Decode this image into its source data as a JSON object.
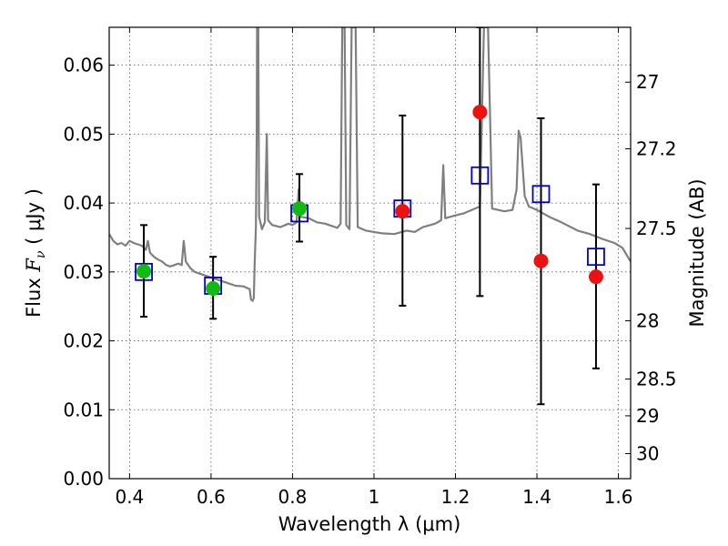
{
  "chart_data": {
    "type": "scatter",
    "title": "",
    "xlabel": "Wavelength  λ (μm)",
    "ylabel": {
      "prefix": "Flux  ",
      "symbol": "F",
      "sub": "ν",
      "suffix": "  ( μJy )"
    },
    "y2label": "Magnitude (AB)",
    "xlim": [
      0.35,
      1.63
    ],
    "ylim": [
      0.0,
      0.0655
    ],
    "grid": true,
    "x_ticks": [
      {
        "value": 0.4,
        "label": "0.4"
      },
      {
        "value": 0.6,
        "label": "0.6"
      },
      {
        "value": 0.8,
        "label": "0.8"
      },
      {
        "value": 1.0,
        "label": "1"
      },
      {
        "value": 1.2,
        "label": "1.2"
      },
      {
        "value": 1.4,
        "label": "1.4"
      },
      {
        "value": 1.6,
        "label": "1.6"
      }
    ],
    "y_ticks": [
      {
        "value": 0.0,
        "label": "0.00"
      },
      {
        "value": 0.01,
        "label": "0.01"
      },
      {
        "value": 0.02,
        "label": "0.02"
      },
      {
        "value": 0.03,
        "label": "0.03"
      },
      {
        "value": 0.04,
        "label": "0.04"
      },
      {
        "value": 0.05,
        "label": "0.05"
      },
      {
        "value": 0.06,
        "label": "0.06"
      }
    ],
    "y2_ticks": [
      {
        "value": 27,
        "label": "27"
      },
      {
        "value": 27.2,
        "label": "27.2"
      },
      {
        "value": 27.5,
        "label": "27.5"
      },
      {
        "value": 28,
        "label": "28"
      },
      {
        "value": 28.5,
        "label": "28.5"
      },
      {
        "value": 29,
        "label": "29"
      },
      {
        "value": 30,
        "label": "30"
      }
    ],
    "colors": {
      "spectrum": "#7f7f7f",
      "model": "#0000cc",
      "green": "#11bb11",
      "red": "#ee1111",
      "errorbar": "#000000",
      "grid": "#555555"
    },
    "series": [
      {
        "kind": "spectrum",
        "points": [
          [
            0.35,
            0.0355
          ],
          [
            0.36,
            0.0345
          ],
          [
            0.37,
            0.034
          ],
          [
            0.38,
            0.0342
          ],
          [
            0.39,
            0.0338
          ],
          [
            0.4,
            0.0345
          ],
          [
            0.41,
            0.0342
          ],
          [
            0.42,
            0.034
          ],
          [
            0.43,
            0.0338
          ],
          [
            0.44,
            0.0332
          ],
          [
            0.445,
            0.0345
          ],
          [
            0.45,
            0.0328
          ],
          [
            0.46,
            0.0322
          ],
          [
            0.47,
            0.0318
          ],
          [
            0.48,
            0.0315
          ],
          [
            0.49,
            0.031
          ],
          [
            0.5,
            0.0308
          ],
          [
            0.51,
            0.031
          ],
          [
            0.52,
            0.0312
          ],
          [
            0.528,
            0.031
          ],
          [
            0.533,
            0.0345
          ],
          [
            0.538,
            0.0315
          ],
          [
            0.55,
            0.0305
          ],
          [
            0.56,
            0.03
          ],
          [
            0.58,
            0.0296
          ],
          [
            0.6,
            0.0292
          ],
          [
            0.62,
            0.0288
          ],
          [
            0.64,
            0.0284
          ],
          [
            0.66,
            0.028
          ],
          [
            0.68,
            0.0279
          ],
          [
            0.695,
            0.0275
          ],
          [
            0.698,
            0.026
          ],
          [
            0.702,
            0.0258
          ],
          [
            0.705,
            0.0262
          ],
          [
            0.707,
            0.031
          ],
          [
            0.71,
            0.0365
          ],
          [
            0.712,
            0.05
          ],
          [
            0.713,
            0.0655
          ],
          [
            0.716,
            0.0655
          ],
          [
            0.718,
            0.038
          ],
          [
            0.725,
            0.0362
          ],
          [
            0.732,
            0.0372
          ],
          [
            0.737,
            0.05
          ],
          [
            0.74,
            0.0375
          ],
          [
            0.75,
            0.0368
          ],
          [
            0.77,
            0.0365
          ],
          [
            0.79,
            0.037
          ],
          [
            0.8,
            0.0368
          ],
          [
            0.81,
            0.0372
          ],
          [
            0.815,
            0.042
          ],
          [
            0.82,
            0.038
          ],
          [
            0.84,
            0.0378
          ],
          [
            0.86,
            0.0372
          ],
          [
            0.88,
            0.037
          ],
          [
            0.9,
            0.0366
          ],
          [
            0.91,
            0.0364
          ],
          [
            0.918,
            0.037
          ],
          [
            0.922,
            0.0655
          ],
          [
            0.928,
            0.0655
          ],
          [
            0.932,
            0.0368
          ],
          [
            0.94,
            0.0362
          ],
          [
            0.945,
            0.0655
          ],
          [
            0.955,
            0.0655
          ],
          [
            0.96,
            0.0365
          ],
          [
            0.98,
            0.036
          ],
          [
            1.0,
            0.0358
          ],
          [
            1.02,
            0.0356
          ],
          [
            1.05,
            0.0355
          ],
          [
            1.08,
            0.036
          ],
          [
            1.1,
            0.0358
          ],
          [
            1.12,
            0.0365
          ],
          [
            1.15,
            0.037
          ],
          [
            1.165,
            0.0375
          ],
          [
            1.17,
            0.0455
          ],
          [
            1.175,
            0.0378
          ],
          [
            1.2,
            0.0382
          ],
          [
            1.22,
            0.0385
          ],
          [
            1.24,
            0.039
          ],
          [
            1.26,
            0.0395
          ],
          [
            1.27,
            0.0655
          ],
          [
            1.28,
            0.0655
          ],
          [
            1.29,
            0.0392
          ],
          [
            1.32,
            0.0388
          ],
          [
            1.34,
            0.039
          ],
          [
            1.35,
            0.042
          ],
          [
            1.355,
            0.0505
          ],
          [
            1.36,
            0.0495
          ],
          [
            1.37,
            0.041
          ],
          [
            1.38,
            0.0395
          ],
          [
            1.4,
            0.039
          ],
          [
            1.43,
            0.038
          ],
          [
            1.46,
            0.0372
          ],
          [
            1.5,
            0.036
          ],
          [
            1.53,
            0.0355
          ],
          [
            1.56,
            0.0348
          ],
          [
            1.59,
            0.0342
          ],
          [
            1.61,
            0.0335
          ],
          [
            1.62,
            0.0325
          ],
          [
            1.63,
            0.0315
          ]
        ]
      },
      {
        "kind": "errorbars",
        "points": [
          {
            "x": 0.435,
            "lo": 0.0235,
            "hi": 0.0368
          },
          {
            "x": 0.605,
            "lo": 0.0232,
            "hi": 0.0322
          },
          {
            "x": 0.817,
            "lo": 0.0344,
            "hi": 0.0442
          },
          {
            "x": 1.07,
            "lo": 0.0251,
            "hi": 0.0527
          },
          {
            "x": 1.26,
            "lo": 0.0265,
            "hi": 0.0655
          },
          {
            "x": 1.41,
            "lo": 0.0108,
            "hi": 0.0523
          },
          {
            "x": 1.545,
            "lo": 0.016,
            "hi": 0.0427
          }
        ]
      },
      {
        "kind": "model-squares",
        "points": [
          [
            0.435,
            0.03
          ],
          [
            0.605,
            0.028
          ],
          [
            0.817,
            0.0385
          ],
          [
            1.07,
            0.0392
          ],
          [
            1.26,
            0.044
          ],
          [
            1.41,
            0.0413
          ],
          [
            1.545,
            0.0322
          ]
        ]
      },
      {
        "kind": "green-points",
        "points": [
          [
            0.435,
            0.0301
          ],
          [
            0.605,
            0.0276
          ],
          [
            0.817,
            0.0392
          ]
        ]
      },
      {
        "kind": "red-points",
        "points": [
          [
            1.07,
            0.0388
          ],
          [
            1.26,
            0.0532
          ],
          [
            1.41,
            0.0316
          ],
          [
            1.545,
            0.0293
          ]
        ]
      }
    ]
  }
}
